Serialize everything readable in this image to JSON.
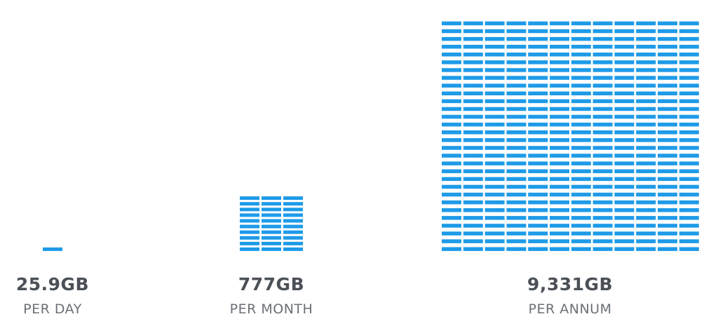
{
  "items": [
    {
      "amount": "25.9GB",
      "period": "PER DAY"
    },
    {
      "amount": "777GB",
      "period": "PER MONTH"
    },
    {
      "amount": "9,331GB",
      "period": "PER ANNUM"
    }
  ]
}
